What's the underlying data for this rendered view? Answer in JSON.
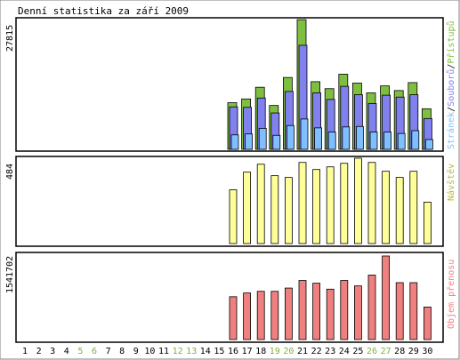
{
  "colors": {
    "background": "#ffffff",
    "panel_border": "#000000",
    "hits": "#7fbf3f",
    "files": "#8080ef",
    "pages": "#7fbfff",
    "visits": "#ffff99",
    "traffic": "#f08080",
    "text": "#000000",
    "weekend_text": "#80b040"
  },
  "chart_data": [
    {
      "type": "bar",
      "title": "Denní statistika za září 2009",
      "categories": [
        "1",
        "2",
        "3",
        "4",
        "5",
        "6",
        "7",
        "8",
        "9",
        "10",
        "11",
        "12",
        "13",
        "14",
        "15",
        "16",
        "17",
        "18",
        "19",
        "20",
        "21",
        "22",
        "23",
        "24",
        "25",
        "26",
        "27",
        "28",
        "29",
        "30"
      ],
      "weekend_days": [
        "5",
        "6",
        "12",
        "13",
        "19",
        "20",
        "26",
        "27"
      ],
      "ymax_label": "27815",
      "legend": [
        "Stránek",
        "Souborů",
        "Přístupů"
      ],
      "legend_separator": "/",
      "ylim": [
        0,
        27815
      ],
      "series": [
        {
          "name": "Přístupů",
          "values": [
            0,
            0,
            0,
            0,
            0,
            0,
            0,
            0,
            0,
            0,
            0,
            0,
            0,
            0,
            0,
            10000,
            10800,
            13300,
            9400,
            15400,
            27800,
            14500,
            13000,
            16100,
            14200,
            12100,
            13600,
            12600,
            14300,
            8700
          ]
        },
        {
          "name": "Souborů",
          "values": [
            0,
            0,
            0,
            0,
            0,
            0,
            0,
            0,
            0,
            0,
            0,
            0,
            0,
            0,
            0,
            9100,
            9000,
            11000,
            7800,
            12400,
            22300,
            12100,
            10700,
            13500,
            11700,
            9800,
            11600,
            11200,
            11700,
            6600
          ]
        },
        {
          "name": "Stránek",
          "values": [
            0,
            0,
            0,
            0,
            0,
            0,
            0,
            0,
            0,
            0,
            0,
            0,
            0,
            0,
            0,
            3100,
            3300,
            4500,
            3000,
            5100,
            6500,
            4600,
            3700,
            4800,
            4900,
            3700,
            3700,
            3400,
            4000,
            2100
          ]
        }
      ]
    },
    {
      "type": "bar",
      "ymax_label": "484",
      "legend": [
        "Návštěv"
      ],
      "ylim": [
        0,
        484
      ],
      "series": [
        {
          "name": "Návštěv",
          "values": [
            0,
            0,
            0,
            0,
            0,
            0,
            0,
            0,
            0,
            0,
            0,
            0,
            0,
            0,
            0,
            305,
            405,
            450,
            385,
            375,
            460,
            420,
            435,
            455,
            484,
            460,
            410,
            375,
            410,
            235
          ]
        }
      ]
    },
    {
      "type": "bar",
      "ymax_label": "1541702",
      "legend": [
        "Objem přenosu"
      ],
      "ylim": [
        0,
        1541702
      ],
      "series": [
        {
          "name": "Objem přenosu",
          "values": [
            0,
            0,
            0,
            0,
            0,
            0,
            0,
            0,
            0,
            0,
            0,
            0,
            0,
            0,
            0,
            790000,
            860000,
            890000,
            890000,
            950000,
            1090000,
            1040000,
            930000,
            1090000,
            990000,
            1190000,
            1541702,
            1050000,
            1050000,
            600000
          ]
        }
      ]
    }
  ]
}
